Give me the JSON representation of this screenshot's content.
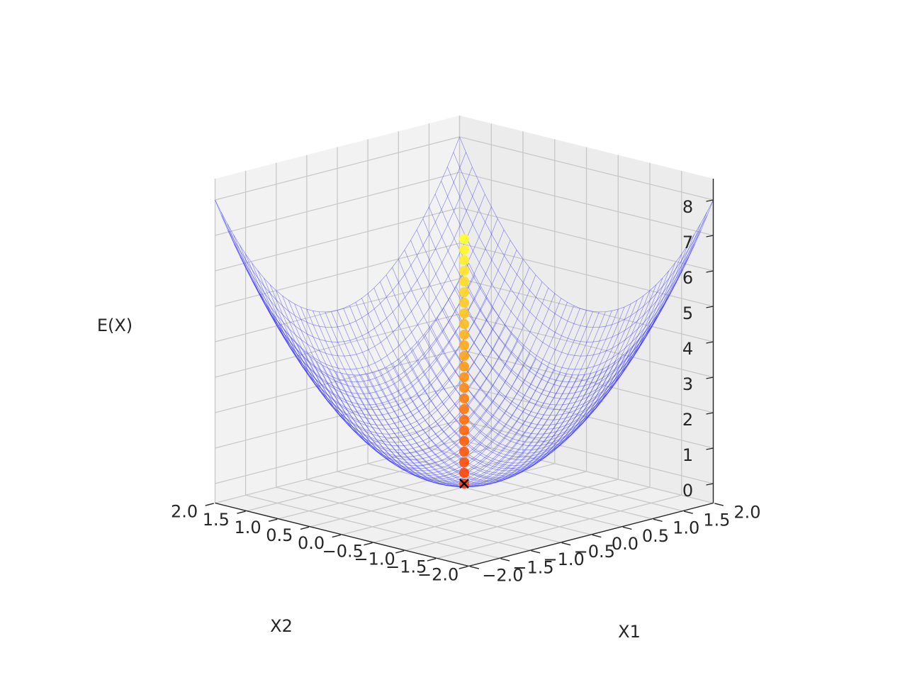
{
  "chart_data": {
    "type": "surface3d",
    "title": "",
    "xlabel": "X1",
    "ylabel": "X2",
    "zlabel": "E(X)",
    "xlim": [
      -2.0,
      2.0
    ],
    "ylim": [
      -2.0,
      2.0
    ],
    "zlim": [
      0,
      8.5
    ],
    "x_ticks": [
      "−2.0",
      "−1.5",
      "−1.0",
      "−0.5",
      "0.0",
      "0.5",
      "1.0",
      "1.5",
      "2.0"
    ],
    "y_ticks": [
      "−2.0",
      "−1.5",
      "−1.0",
      "−0.5",
      "0.0",
      "0.5",
      "1.0",
      "1.5",
      "2.0"
    ],
    "z_ticks": [
      "0",
      "1",
      "2",
      "3",
      "4",
      "5",
      "6",
      "7",
      "8"
    ],
    "grid": true,
    "surface": {
      "function": "E(X) = X1^2 + X2^2",
      "style": "wireframe",
      "color": "#3333ff"
    },
    "descent_path": {
      "x1": [
        0.0,
        0.0,
        0.0,
        0.0,
        0.0,
        0.0,
        0.0,
        0.0,
        0.0,
        0.0,
        0.0,
        0.0,
        0.0,
        0.0,
        0.0,
        0.0,
        0.0,
        0.0,
        0.0,
        0.0,
        0.0,
        0.0,
        0.0,
        0.0
      ],
      "x2": [
        0.0,
        0.0,
        0.0,
        0.0,
        0.0,
        0.0,
        0.0,
        0.0,
        0.0,
        0.0,
        0.0,
        0.0,
        0.0,
        0.0,
        0.0,
        0.0,
        0.0,
        0.0,
        0.0,
        0.0,
        0.0,
        0.0,
        0.0,
        0.0
      ],
      "e": [
        0.0,
        0.3,
        0.6,
        0.9,
        1.2,
        1.5,
        1.8,
        2.1,
        2.4,
        2.7,
        3.0,
        3.3,
        3.6,
        3.9,
        4.2,
        4.5,
        4.8,
        5.1,
        5.4,
        5.7,
        6.0,
        6.3,
        6.6,
        6.9
      ],
      "colormap": "autumn",
      "final_marker": "x",
      "final_color": "#000000"
    },
    "pane_color": "#f2f2f2",
    "grid_color": "#c8c8c8"
  }
}
